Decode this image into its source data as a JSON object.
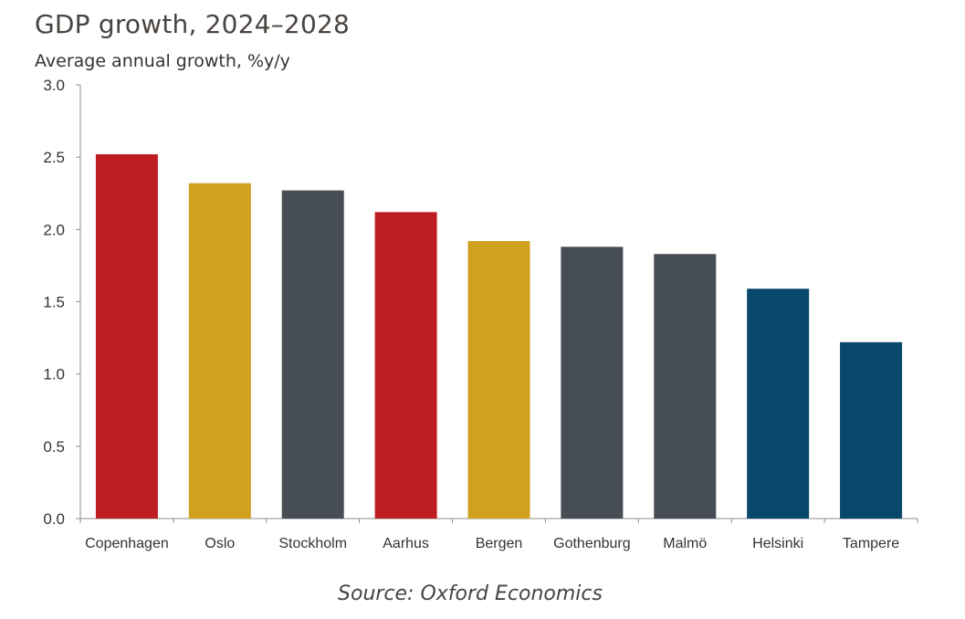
{
  "chart_data": {
    "type": "bar",
    "title": "GDP growth, 2024–2028",
    "subtitle": "Average annual growth, %y/y",
    "source": "Source: Oxford Economics",
    "categories": [
      "Copenhagen",
      "Oslo",
      "Stockholm",
      "Aarhus",
      "Bergen",
      "Gothenburg",
      "Malmö",
      "Helsinki",
      "Tampere"
    ],
    "values": [
      2.52,
      2.32,
      2.27,
      2.12,
      1.92,
      1.88,
      1.83,
      1.59,
      1.22
    ],
    "colors": [
      "#be1e23",
      "#d0a11f",
      "#474d54",
      "#be1e23",
      "#d0a11f",
      "#474d54",
      "#474d54",
      "#08486a",
      "#08486a"
    ],
    "y_ticks": [
      "0.0",
      "0.5",
      "1.0",
      "1.5",
      "2.0",
      "2.5",
      "3.0"
    ],
    "ylim": [
      0,
      3.0
    ],
    "xlabel": "",
    "ylabel": "",
    "grid": false,
    "legend": "none"
  }
}
